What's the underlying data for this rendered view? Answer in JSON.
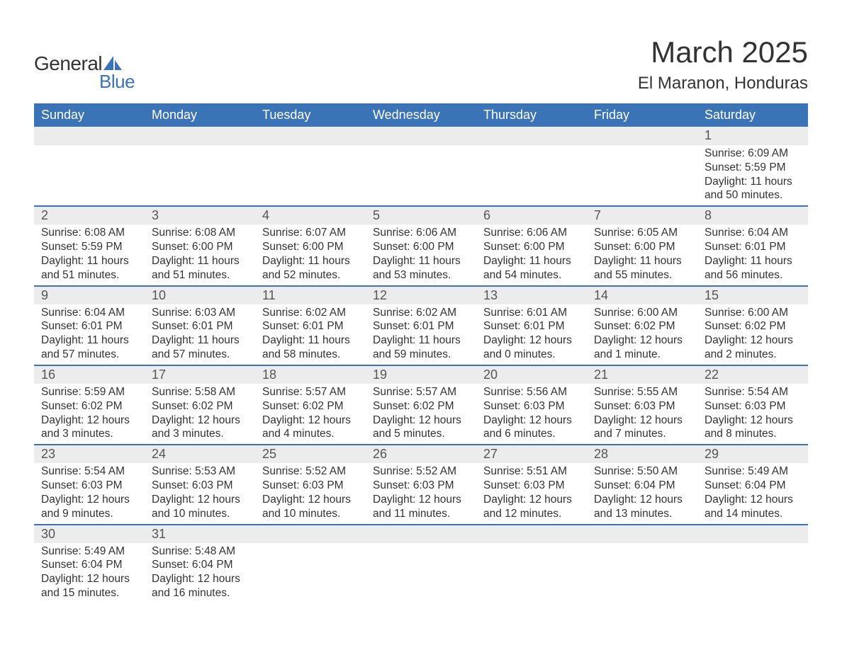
{
  "logo": {
    "word1": "General",
    "word2": "Blue",
    "sail_color": "#3a73b6",
    "text_color": "#333333"
  },
  "title": "March 2025",
  "location": "El Maranon, Honduras",
  "colors": {
    "header_bg": "#3a73b6",
    "header_text": "#ffffff",
    "daynum_bg": "#ececec",
    "text": "#333333",
    "row_border": "#3a73b6"
  },
  "layout": {
    "columns": 7,
    "week_rows": 6,
    "daynum_fontsize": 18,
    "data_fontsize": 15.5,
    "title_fontsize": 42,
    "location_fontsize": 24,
    "header_fontsize": 18
  },
  "day_headers": [
    "Sunday",
    "Monday",
    "Tuesday",
    "Wednesday",
    "Thursday",
    "Friday",
    "Saturday"
  ],
  "weeks": [
    [
      null,
      null,
      null,
      null,
      null,
      null,
      {
        "num": "1",
        "sunrise": "Sunrise: 6:09 AM",
        "sunset": "Sunset: 5:59 PM",
        "daylight1": "Daylight: 11 hours",
        "daylight2": "and 50 minutes."
      }
    ],
    [
      {
        "num": "2",
        "sunrise": "Sunrise: 6:08 AM",
        "sunset": "Sunset: 5:59 PM",
        "daylight1": "Daylight: 11 hours",
        "daylight2": "and 51 minutes."
      },
      {
        "num": "3",
        "sunrise": "Sunrise: 6:08 AM",
        "sunset": "Sunset: 6:00 PM",
        "daylight1": "Daylight: 11 hours",
        "daylight2": "and 51 minutes."
      },
      {
        "num": "4",
        "sunrise": "Sunrise: 6:07 AM",
        "sunset": "Sunset: 6:00 PM",
        "daylight1": "Daylight: 11 hours",
        "daylight2": "and 52 minutes."
      },
      {
        "num": "5",
        "sunrise": "Sunrise: 6:06 AM",
        "sunset": "Sunset: 6:00 PM",
        "daylight1": "Daylight: 11 hours",
        "daylight2": "and 53 minutes."
      },
      {
        "num": "6",
        "sunrise": "Sunrise: 6:06 AM",
        "sunset": "Sunset: 6:00 PM",
        "daylight1": "Daylight: 11 hours",
        "daylight2": "and 54 minutes."
      },
      {
        "num": "7",
        "sunrise": "Sunrise: 6:05 AM",
        "sunset": "Sunset: 6:00 PM",
        "daylight1": "Daylight: 11 hours",
        "daylight2": "and 55 minutes."
      },
      {
        "num": "8",
        "sunrise": "Sunrise: 6:04 AM",
        "sunset": "Sunset: 6:01 PM",
        "daylight1": "Daylight: 11 hours",
        "daylight2": "and 56 minutes."
      }
    ],
    [
      {
        "num": "9",
        "sunrise": "Sunrise: 6:04 AM",
        "sunset": "Sunset: 6:01 PM",
        "daylight1": "Daylight: 11 hours",
        "daylight2": "and 57 minutes."
      },
      {
        "num": "10",
        "sunrise": "Sunrise: 6:03 AM",
        "sunset": "Sunset: 6:01 PM",
        "daylight1": "Daylight: 11 hours",
        "daylight2": "and 57 minutes."
      },
      {
        "num": "11",
        "sunrise": "Sunrise: 6:02 AM",
        "sunset": "Sunset: 6:01 PM",
        "daylight1": "Daylight: 11 hours",
        "daylight2": "and 58 minutes."
      },
      {
        "num": "12",
        "sunrise": "Sunrise: 6:02 AM",
        "sunset": "Sunset: 6:01 PM",
        "daylight1": "Daylight: 11 hours",
        "daylight2": "and 59 minutes."
      },
      {
        "num": "13",
        "sunrise": "Sunrise: 6:01 AM",
        "sunset": "Sunset: 6:01 PM",
        "daylight1": "Daylight: 12 hours",
        "daylight2": "and 0 minutes."
      },
      {
        "num": "14",
        "sunrise": "Sunrise: 6:00 AM",
        "sunset": "Sunset: 6:02 PM",
        "daylight1": "Daylight: 12 hours",
        "daylight2": "and 1 minute."
      },
      {
        "num": "15",
        "sunrise": "Sunrise: 6:00 AM",
        "sunset": "Sunset: 6:02 PM",
        "daylight1": "Daylight: 12 hours",
        "daylight2": "and 2 minutes."
      }
    ],
    [
      {
        "num": "16",
        "sunrise": "Sunrise: 5:59 AM",
        "sunset": "Sunset: 6:02 PM",
        "daylight1": "Daylight: 12 hours",
        "daylight2": "and 3 minutes."
      },
      {
        "num": "17",
        "sunrise": "Sunrise: 5:58 AM",
        "sunset": "Sunset: 6:02 PM",
        "daylight1": "Daylight: 12 hours",
        "daylight2": "and 3 minutes."
      },
      {
        "num": "18",
        "sunrise": "Sunrise: 5:57 AM",
        "sunset": "Sunset: 6:02 PM",
        "daylight1": "Daylight: 12 hours",
        "daylight2": "and 4 minutes."
      },
      {
        "num": "19",
        "sunrise": "Sunrise: 5:57 AM",
        "sunset": "Sunset: 6:02 PM",
        "daylight1": "Daylight: 12 hours",
        "daylight2": "and 5 minutes."
      },
      {
        "num": "20",
        "sunrise": "Sunrise: 5:56 AM",
        "sunset": "Sunset: 6:03 PM",
        "daylight1": "Daylight: 12 hours",
        "daylight2": "and 6 minutes."
      },
      {
        "num": "21",
        "sunrise": "Sunrise: 5:55 AM",
        "sunset": "Sunset: 6:03 PM",
        "daylight1": "Daylight: 12 hours",
        "daylight2": "and 7 minutes."
      },
      {
        "num": "22",
        "sunrise": "Sunrise: 5:54 AM",
        "sunset": "Sunset: 6:03 PM",
        "daylight1": "Daylight: 12 hours",
        "daylight2": "and 8 minutes."
      }
    ],
    [
      {
        "num": "23",
        "sunrise": "Sunrise: 5:54 AM",
        "sunset": "Sunset: 6:03 PM",
        "daylight1": "Daylight: 12 hours",
        "daylight2": "and 9 minutes."
      },
      {
        "num": "24",
        "sunrise": "Sunrise: 5:53 AM",
        "sunset": "Sunset: 6:03 PM",
        "daylight1": "Daylight: 12 hours",
        "daylight2": "and 10 minutes."
      },
      {
        "num": "25",
        "sunrise": "Sunrise: 5:52 AM",
        "sunset": "Sunset: 6:03 PM",
        "daylight1": "Daylight: 12 hours",
        "daylight2": "and 10 minutes."
      },
      {
        "num": "26",
        "sunrise": "Sunrise: 5:52 AM",
        "sunset": "Sunset: 6:03 PM",
        "daylight1": "Daylight: 12 hours",
        "daylight2": "and 11 minutes."
      },
      {
        "num": "27",
        "sunrise": "Sunrise: 5:51 AM",
        "sunset": "Sunset: 6:03 PM",
        "daylight1": "Daylight: 12 hours",
        "daylight2": "and 12 minutes."
      },
      {
        "num": "28",
        "sunrise": "Sunrise: 5:50 AM",
        "sunset": "Sunset: 6:04 PM",
        "daylight1": "Daylight: 12 hours",
        "daylight2": "and 13 minutes."
      },
      {
        "num": "29",
        "sunrise": "Sunrise: 5:49 AM",
        "sunset": "Sunset: 6:04 PM",
        "daylight1": "Daylight: 12 hours",
        "daylight2": "and 14 minutes."
      }
    ],
    [
      {
        "num": "30",
        "sunrise": "Sunrise: 5:49 AM",
        "sunset": "Sunset: 6:04 PM",
        "daylight1": "Daylight: 12 hours",
        "daylight2": "and 15 minutes."
      },
      {
        "num": "31",
        "sunrise": "Sunrise: 5:48 AM",
        "sunset": "Sunset: 6:04 PM",
        "daylight1": "Daylight: 12 hours",
        "daylight2": "and 16 minutes."
      },
      null,
      null,
      null,
      null,
      null
    ]
  ]
}
